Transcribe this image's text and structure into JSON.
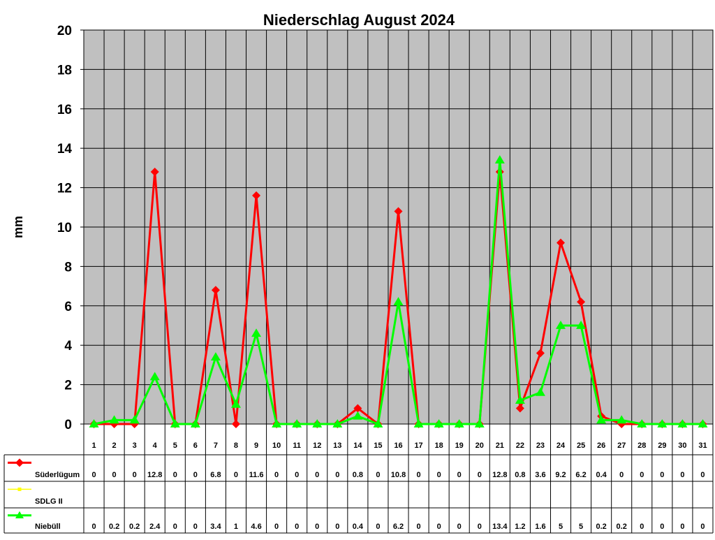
{
  "chart_data": {
    "type": "line",
    "title": "Niederschlag August 2024",
    "ylabel": "mm",
    "xlabel": "",
    "ylim": [
      0,
      20
    ],
    "yticks": [
      0,
      2,
      4,
      6,
      8,
      10,
      12,
      14,
      16,
      18,
      20
    ],
    "grid": true,
    "plot_background": "#c0c0c0",
    "legend_placement": "data-table-left",
    "categories": [
      "1",
      "2",
      "3",
      "4",
      "5",
      "6",
      "7",
      "8",
      "9",
      "10",
      "11",
      "12",
      "13",
      "14",
      "15",
      "16",
      "17",
      "18",
      "19",
      "20",
      "21",
      "22",
      "23",
      "24",
      "25",
      "26",
      "27",
      "28",
      "29",
      "30",
      "31"
    ],
    "series": [
      {
        "name": "Süderlügum",
        "color": "#ff0000",
        "marker": "diamond",
        "values": [
          0,
          0,
          0,
          12.8,
          0,
          0,
          6.8,
          0,
          11.6,
          0,
          0,
          0,
          0,
          0.8,
          0,
          10.8,
          0,
          0,
          0,
          0,
          12.8,
          0.8,
          3.6,
          9.2,
          6.2,
          0.4,
          0,
          0,
          0,
          0,
          0
        ]
      },
      {
        "name": "SDLG II",
        "color": "#ffff00",
        "marker": "square",
        "values": [
          null,
          null,
          null,
          null,
          null,
          null,
          null,
          null,
          null,
          null,
          null,
          null,
          null,
          null,
          null,
          null,
          null,
          null,
          null,
          null,
          null,
          null,
          null,
          null,
          null,
          null,
          null,
          null,
          null,
          null,
          null
        ]
      },
      {
        "name": "Niebüll",
        "color": "#00ff00",
        "marker": "triangle",
        "values": [
          0,
          0.2,
          0.2,
          2.4,
          0,
          0,
          3.4,
          1,
          4.6,
          0,
          0,
          0,
          0,
          0.4,
          0,
          6.2,
          0,
          0,
          0,
          0,
          13.4,
          1.2,
          1.6,
          5,
          5,
          0.2,
          0.2,
          0,
          0,
          0,
          0
        ]
      }
    ]
  }
}
